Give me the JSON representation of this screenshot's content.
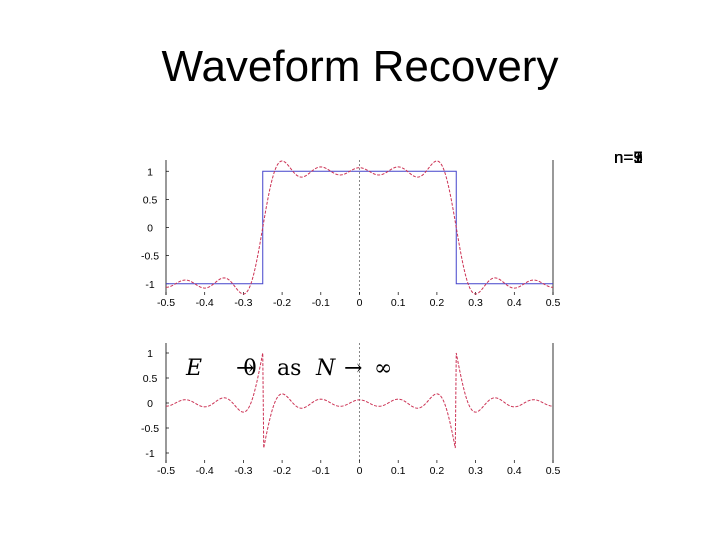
{
  "slide": {
    "title": "Waveform Recovery"
  },
  "legend_labels": [
    "n=1",
    "n=3",
    "n=5",
    "n=7",
    "n=9"
  ],
  "annotation": {
    "E": "E",
    "zero": "0",
    "as": "as",
    "N": "N",
    "infinity": "∞"
  },
  "chart_data": [
    {
      "type": "line",
      "title": "",
      "xlabel": "",
      "ylabel": "",
      "xlim": [
        -0.5,
        0.5
      ],
      "ylim": [
        -1.2,
        1.2
      ],
      "x_ticks": [
        "-0.5",
        "-0.4",
        "-0.3",
        "-0.2",
        "-0.1",
        "0",
        "0.1",
        "0.2",
        "0.3",
        "0.4",
        "0.5"
      ],
      "y_ticks": [
        "1",
        "0.5",
        "0",
        "-0.5",
        "-1"
      ],
      "y_tick_values": [
        1,
        0.5,
        0,
        -0.5,
        -1
      ],
      "series": [
        {
          "type": "square",
          "harmonics": 0,
          "x": [
            -0.5,
            -0.25,
            -0.25,
            0.25,
            0.25,
            0.5
          ],
          "y": [
            -1,
            -1,
            1,
            1,
            -1,
            -1
          ]
        },
        {
          "type": "fourier",
          "harmonics": 9
        }
      ],
      "vertical_reference": 0
    },
    {
      "type": "line",
      "title": "",
      "xlabel": "",
      "ylabel": "",
      "xlim": [
        -0.5,
        0.5
      ],
      "ylim": [
        -1.2,
        1.2
      ],
      "x_ticks": [
        "-0.5",
        "-0.4",
        "-0.3",
        "-0.2",
        "-0.1",
        "0",
        "0.1",
        "0.2",
        "0.3",
        "0.4",
        "0.5"
      ],
      "y_ticks": [
        "1",
        "0.5",
        "0",
        "-0.5",
        "-1"
      ],
      "y_tick_values": [
        1,
        0.5,
        0,
        -0.5,
        -1
      ],
      "series": [
        {
          "type": "error",
          "harmonics": 9
        }
      ],
      "vertical_reference": 0
    }
  ],
  "colors": {
    "square": "#4444cc",
    "approximation": "#cc3355",
    "axes": "#000000"
  }
}
